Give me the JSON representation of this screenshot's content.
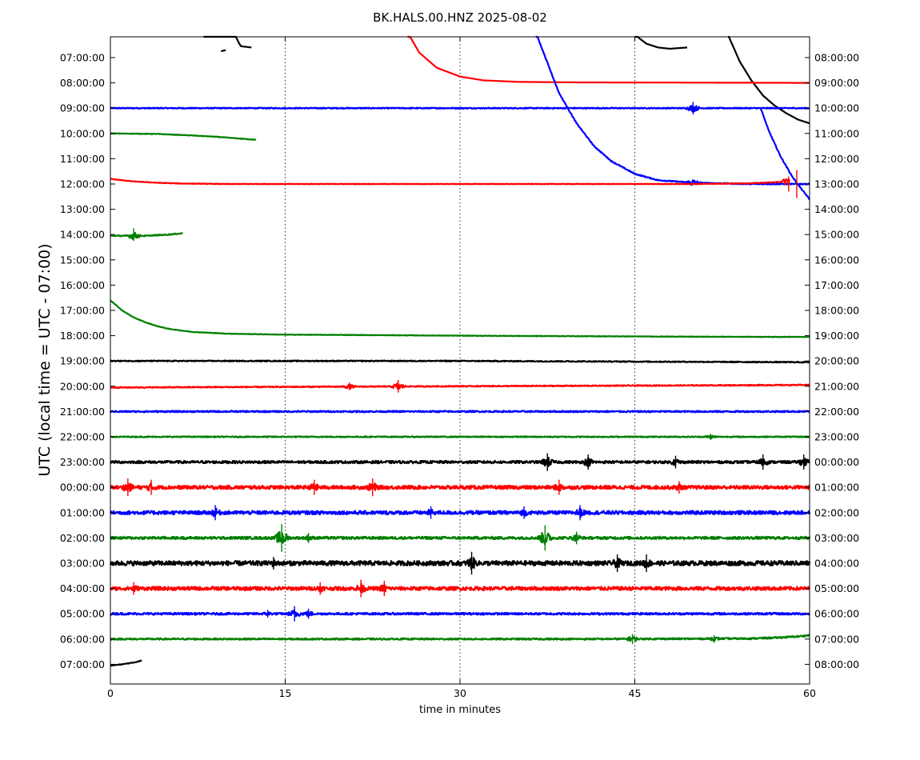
{
  "chart_data": {
    "type": "line",
    "title": "BK.HALS.00.HNZ 2025-08-02",
    "xlabel": "time in minutes",
    "ylabel": "UTC (local time = UTC - 07:00)",
    "xlim": [
      0,
      60
    ],
    "x_ticks": [
      "0",
      "15",
      "30",
      "45",
      "60"
    ],
    "x_tick_values": [
      0,
      15,
      30,
      45,
      60
    ],
    "grid": "vertical dotted at 15, 30, 45",
    "colors_cycle": [
      "#000000",
      "#ff0000",
      "#0000ff",
      "#008000"
    ],
    "left_tick_labels": [
      "07:00:00",
      "08:00:00",
      "09:00:00",
      "10:00:00",
      "11:00:00",
      "12:00:00",
      "13:00:00",
      "14:00:00",
      "15:00:00",
      "16:00:00",
      "17:00:00",
      "18:00:00",
      "19:00:00",
      "20:00:00",
      "21:00:00",
      "22:00:00",
      "23:00:00",
      "00:00:00",
      "01:00:00",
      "02:00:00",
      "03:00:00",
      "04:00:00",
      "05:00:00",
      "06:00:00",
      "07:00:00"
    ],
    "right_tick_labels": [
      "08:00:00",
      "09:00:00",
      "10:00:00",
      "11:00:00",
      "12:00:00",
      "13:00:00",
      "14:00:00",
      "15:00:00",
      "16:00:00",
      "17:00:00",
      "18:00:00",
      "19:00:00",
      "20:00:00",
      "21:00:00",
      "22:00:00",
      "23:00:00",
      "00:00:00",
      "01:00:00",
      "02:00:00",
      "03:00:00",
      "04:00:00",
      "05:00:00",
      "06:00:00",
      "07:00:00",
      "08:00:00"
    ],
    "traces": [
      {
        "hour": "07:00:00",
        "color": "#000000",
        "segments": [
          {
            "x": [
              8,
              9,
              10,
              11,
              11.2,
              12.1
            ],
            "offset": [
              5.0,
              3.2,
              1.6,
              0.6,
              0.45,
              0.4
            ]
          },
          {
            "x": [
              9.5,
              9.9
            ],
            "offset": [
              0.25,
              0.3
            ]
          },
          {
            "x": [
              45,
              46,
              47,
              48,
              49.5
            ],
            "offset": [
              0.9,
              0.55,
              0.4,
              0.35,
              0.4
            ]
          },
          {
            "x": [
              53,
              54,
              55,
              56,
              57,
              58,
              59,
              60
            ],
            "offset": [
              0.9,
              -0.15,
              -0.9,
              -1.5,
              -1.9,
              -2.2,
              -2.45,
              -2.6
            ]
          }
        ],
        "noise": 0,
        "events": []
      },
      {
        "hour": "08:00:00",
        "color": "#ff0000",
        "segments": [
          {
            "x": [
              25.5,
              26.5,
              28,
              30,
              32,
              35,
              40,
              50,
              60
            ],
            "offset": [
              2.0,
              1.2,
              0.6,
              0.25,
              0.1,
              0.04,
              0.02,
              0.01,
              0.0
            ]
          }
        ],
        "noise": 0,
        "events": []
      },
      {
        "hour": "09:00:00",
        "color": "#0000ff",
        "segments": [
          {
            "x": [
              0,
              60
            ],
            "offset": [
              0,
              0
            ]
          },
          {
            "x": [
              36.5,
              37.5,
              38.5,
              40,
              41.5,
              43,
              45,
              47,
              50,
              55,
              60
            ],
            "offset": [
              3.0,
              1.8,
              0.6,
              -0.6,
              -1.5,
              -2.1,
              -2.6,
              -2.85,
              -2.95,
              -3.0,
              -3.0
            ]
          },
          {
            "x": [
              55.8,
              56.5,
              57.5,
              58.5,
              59.3,
              60
            ],
            "offset": [
              0,
              -0.9,
              -1.9,
              -2.7,
              -3.2,
              -3.6
            ]
          }
        ],
        "noise": 0.02,
        "events": [
          {
            "x": 50,
            "amp": 0.25
          }
        ]
      },
      {
        "hour": "10:00:00",
        "color": "#008000",
        "segments": [
          {
            "x": [
              0,
              4,
              7,
              9,
              11,
              12.5
            ],
            "offset": [
              0,
              -0.02,
              -0.08,
              -0.13,
              -0.2,
              -0.25
            ]
          }
        ],
        "noise": 0.01,
        "events": []
      },
      {
        "hour": "11:00:00",
        "color": "#000000",
        "segments": [],
        "noise": 0,
        "events": []
      },
      {
        "hour": "12:00:00",
        "color": "#ff0000",
        "segments": [
          {
            "x": [
              0,
              2,
              4,
              6,
              10,
              20,
              30,
              40,
              50,
              55,
              57,
              58.3
            ],
            "offset": [
              0.2,
              0.1,
              0.05,
              0.02,
              0.0,
              0.0,
              0.0,
              0.0,
              0.0,
              0.03,
              0.07,
              0.12
            ]
          }
        ],
        "noise": 0.01,
        "events": [
          {
            "x": 58.2,
            "amp": 0.3
          },
          {
            "x": 58.9,
            "amp": 0.55
          }
        ]
      },
      {
        "hour": "13:00:00",
        "color": "#0000ff",
        "segments": [],
        "noise": 0,
        "events": []
      },
      {
        "hour": "14:00:00",
        "color": "#008000",
        "segments": [
          {
            "x": [
              0,
              3,
              5,
              6.2
            ],
            "offset": [
              -0.05,
              -0.05,
              0.0,
              0.05
            ]
          }
        ],
        "noise": 0.02,
        "events": [
          {
            "x": 2.0,
            "amp": 0.25
          }
        ]
      },
      {
        "hour": "15:00:00",
        "color": "#000000",
        "segments": [],
        "noise": 0,
        "events": []
      },
      {
        "hour": "16:00:00",
        "color": "#ff0000",
        "segments": [],
        "noise": 0,
        "events": []
      },
      {
        "hour": "17:00:00",
        "color": "#0000ff",
        "segments": [],
        "noise": 0,
        "events": []
      },
      {
        "hour": "18:00:00",
        "color": "#008000",
        "segments": [
          {
            "x": [
              0,
              1,
              2,
              3,
              4,
              5,
              7,
              10,
              15,
              20,
              30,
              40,
              50,
              60
            ],
            "offset": [
              1.4,
              1.0,
              0.72,
              0.53,
              0.38,
              0.27,
              0.15,
              0.08,
              0.04,
              0.03,
              0.0,
              -0.02,
              -0.04,
              -0.05
            ]
          }
        ],
        "noise": 0.01,
        "events": []
      },
      {
        "hour": "19:00:00",
        "color": "#000000",
        "segments": [
          {
            "x": [
              0,
              30,
              60
            ],
            "offset": [
              0,
              0,
              -0.05
            ]
          }
        ],
        "noise": 0.02,
        "events": []
      },
      {
        "hour": "20:00:00",
        "color": "#ff0000",
        "segments": [
          {
            "x": [
              0,
              30,
              60
            ],
            "offset": [
              -0.05,
              0,
              0.05
            ]
          }
        ],
        "noise": 0.02,
        "events": [
          {
            "x": 20.5,
            "amp": 0.15
          },
          {
            "x": 24.7,
            "amp": 0.25
          }
        ]
      },
      {
        "hour": "21:00:00",
        "color": "#0000ff",
        "segments": [
          {
            "x": [
              0,
              60
            ],
            "offset": [
              0,
              0
            ]
          }
        ],
        "noise": 0.03,
        "events": []
      },
      {
        "hour": "22:00:00",
        "color": "#008000",
        "segments": [
          {
            "x": [
              0,
              60
            ],
            "offset": [
              0,
              0
            ]
          }
        ],
        "noise": 0.02,
        "events": [
          {
            "x": 51.5,
            "amp": 0.12
          }
        ]
      },
      {
        "hour": "23:00:00",
        "color": "#000000",
        "segments": [
          {
            "x": [
              0,
              60
            ],
            "offset": [
              0,
              0
            ]
          }
        ],
        "noise": 0.05,
        "events": [
          {
            "x": 37.5,
            "amp": 0.35
          },
          {
            "x": 41,
            "amp": 0.3
          },
          {
            "x": 48.5,
            "amp": 0.25
          },
          {
            "x": 56,
            "amp": 0.3
          },
          {
            "x": 59.5,
            "amp": 0.3
          }
        ]
      },
      {
        "hour": "00:00:00",
        "color": "#ff0000",
        "segments": [
          {
            "x": [
              0,
              60
            ],
            "offset": [
              0,
              0
            ]
          }
        ],
        "noise": 0.07,
        "events": [
          {
            "x": 1.5,
            "amp": 0.35
          },
          {
            "x": 3.5,
            "amp": 0.3
          },
          {
            "x": 17.5,
            "amp": 0.3
          },
          {
            "x": 22.5,
            "amp": 0.35
          },
          {
            "x": 38.5,
            "amp": 0.3
          },
          {
            "x": 48.8,
            "amp": 0.25
          }
        ]
      },
      {
        "hour": "01:00:00",
        "color": "#0000ff",
        "segments": [
          {
            "x": [
              0,
              60
            ],
            "offset": [
              0,
              0
            ]
          }
        ],
        "noise": 0.07,
        "events": [
          {
            "x": 9,
            "amp": 0.3
          },
          {
            "x": 27.5,
            "amp": 0.25
          },
          {
            "x": 40.3,
            "amp": 0.3
          },
          {
            "x": 35.5,
            "amp": 0.25
          }
        ]
      },
      {
        "hour": "02:00:00",
        "color": "#008000",
        "segments": [
          {
            "x": [
              0,
              60
            ],
            "offset": [
              0,
              0
            ]
          }
        ],
        "noise": 0.05,
        "events": [
          {
            "x": 14.7,
            "amp": 0.55
          },
          {
            "x": 37.3,
            "amp": 0.5
          },
          {
            "x": 40.0,
            "amp": 0.25
          },
          {
            "x": 17,
            "amp": 0.2
          }
        ]
      },
      {
        "hour": "03:00:00",
        "color": "#000000",
        "segments": [
          {
            "x": [
              0,
              60
            ],
            "offset": [
              0,
              0
            ]
          }
        ],
        "noise": 0.09,
        "events": [
          {
            "x": 31,
            "amp": 0.45
          },
          {
            "x": 43.5,
            "amp": 0.35
          },
          {
            "x": 46,
            "amp": 0.35
          },
          {
            "x": 14,
            "amp": 0.25
          }
        ]
      },
      {
        "hour": "04:00:00",
        "color": "#ff0000",
        "segments": [
          {
            "x": [
              0,
              60
            ],
            "offset": [
              0,
              0
            ]
          }
        ],
        "noise": 0.07,
        "events": [
          {
            "x": 21.5,
            "amp": 0.35
          },
          {
            "x": 23.5,
            "amp": 0.3
          },
          {
            "x": 18,
            "amp": 0.25
          },
          {
            "x": 2,
            "amp": 0.25
          }
        ]
      },
      {
        "hour": "05:00:00",
        "color": "#0000ff",
        "segments": [
          {
            "x": [
              0,
              60
            ],
            "offset": [
              0,
              0
            ]
          }
        ],
        "noise": 0.04,
        "events": [
          {
            "x": 15.8,
            "amp": 0.3
          },
          {
            "x": 17,
            "amp": 0.2
          },
          {
            "x": 13.5,
            "amp": 0.15
          }
        ]
      },
      {
        "hour": "06:00:00",
        "color": "#008000",
        "segments": [
          {
            "x": [
              0,
              40,
              50,
              55,
              57,
              59,
              60
            ],
            "offset": [
              0,
              0,
              0.01,
              0.02,
              0.05,
              0.1,
              0.15
            ]
          }
        ],
        "noise": 0.03,
        "events": [
          {
            "x": 44.8,
            "amp": 0.2
          },
          {
            "x": 51.8,
            "amp": 0.15
          }
        ]
      },
      {
        "hour": "07:00:00",
        "color": "#000000",
        "segments": [
          {
            "x": [
              0,
              1,
              2,
              2.7
            ],
            "offset": [
              -0.05,
              0.0,
              0.07,
              0.15
            ]
          }
        ],
        "noise": 0.01,
        "events": []
      }
    ]
  }
}
